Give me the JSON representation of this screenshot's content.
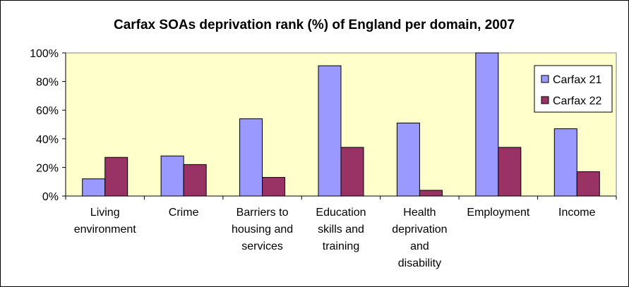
{
  "chart_data": {
    "type": "bar",
    "title": "Carfax SOAs deprivation rank (%) of England per domain, 2007",
    "xlabel": "",
    "ylabel": "",
    "ylim": [
      0,
      100
    ],
    "y_ticks": [
      "0%",
      "20%",
      "40%",
      "60%",
      "80%",
      "100%"
    ],
    "y_tick_values": [
      0,
      20,
      40,
      60,
      80,
      100
    ],
    "categories": [
      [
        "Living",
        "environment"
      ],
      [
        "Crime"
      ],
      [
        "Barriers to",
        "housing and",
        "services"
      ],
      [
        "Education",
        "skills and",
        "training"
      ],
      [
        "Health",
        "deprivation",
        "and",
        "disability"
      ],
      [
        "Employment"
      ],
      [
        "Income"
      ]
    ],
    "series": [
      {
        "name": "Carfax 21",
        "color": "#9999ff",
        "values": [
          12,
          28,
          54,
          91,
          51,
          100,
          47
        ]
      },
      {
        "name": "Carfax 22",
        "color": "#993366",
        "values": [
          27,
          22,
          13,
          34,
          4,
          34,
          17
        ]
      }
    ],
    "legend_position": "right",
    "plot_background": "#ffffcc",
    "grid": false
  }
}
